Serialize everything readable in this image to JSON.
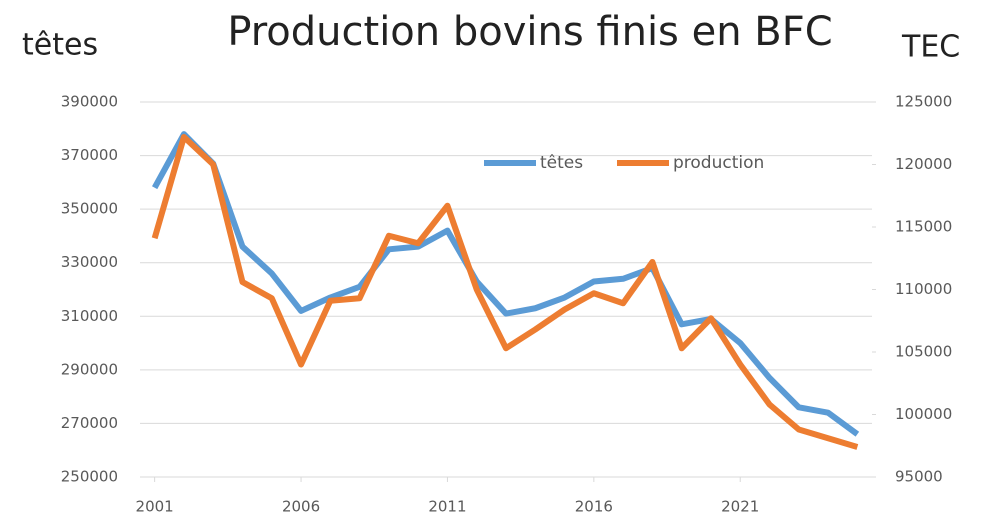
{
  "chart_data": {
    "type": "line",
    "title": "Production bovins finis en BFC",
    "y_label": "têtes",
    "y2_label": "TEC",
    "x": [
      2001,
      2002,
      2003,
      2004,
      2005,
      2006,
      2007,
      2008,
      2009,
      2010,
      2011,
      2012,
      2013,
      2014,
      2015,
      2016,
      2017,
      2018,
      2019,
      2020,
      2021,
      2022,
      2023,
      2024,
      2025
    ],
    "series": [
      {
        "name": "têtes",
        "color": "#5b9bd5",
        "values": [
          358000,
          378000,
          367000,
          336000,
          326000,
          312000,
          317000,
          321000,
          335000,
          336000,
          342000,
          323000,
          311000,
          313000,
          317000,
          323000,
          324000,
          328000,
          307000,
          309000,
          300000,
          287000,
          276000,
          274000,
          266000
        ]
      },
      {
        "name": "production",
        "color": "#ed7d31",
        "axis": "y2",
        "values": [
          114100,
          122200,
          120000,
          110600,
          109300,
          104000,
          109100,
          109300,
          114300,
          113700,
          116700,
          110000,
          105300,
          106800,
          108400,
          109700,
          108900,
          112200,
          105300,
          107700,
          104000,
          100800,
          98800,
          98100,
          97400
        ]
      }
    ],
    "xlim": [
      2000.5,
      2025.5
    ],
    "xticks": [
      2001,
      2006,
      2011,
      2016,
      2021
    ],
    "ylim": [
      250000,
      390000
    ],
    "yticks": [
      250000,
      270000,
      290000,
      310000,
      330000,
      350000,
      370000,
      390000
    ],
    "y2lim": [
      95000,
      125000
    ],
    "y2ticks": [
      95000,
      100000,
      105000,
      110000,
      115000,
      120000,
      125000
    ],
    "grid": true,
    "legend": "top"
  }
}
